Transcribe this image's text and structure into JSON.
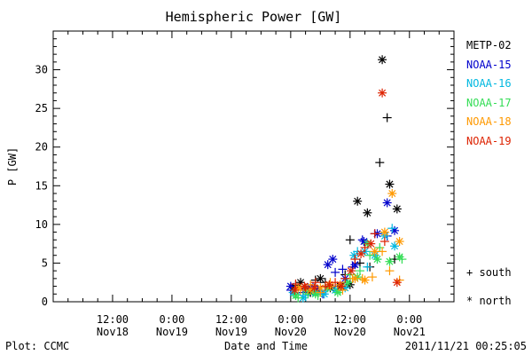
{
  "chart_data": {
    "type": "scatter",
    "title": "Hemispheric Power [GW]",
    "xlabel": "Date and Time",
    "ylabel": "P [GW]",
    "ylim": [
      0,
      35
    ],
    "xlim_hours": [
      -24,
      57
    ],
    "x_reference": "Nov20 00:00",
    "yticks": [
      0,
      5,
      10,
      15,
      20,
      25,
      30
    ],
    "xticks": [
      {
        "hours": -12,
        "time": "12:00",
        "date": "Nov18"
      },
      {
        "hours": 0,
        "time": "0:00",
        "date": "Nov19"
      },
      {
        "hours": 12,
        "time": "12:00",
        "date": "Nov19"
      },
      {
        "hours": 24,
        "time": "0:00",
        "date": "Nov20"
      },
      {
        "hours": 36,
        "time": "12:00",
        "date": "Nov20"
      },
      {
        "hours": 48,
        "time": "0:00",
        "date": "Nov21"
      }
    ],
    "series": [
      {
        "name": "METP-02",
        "color": "#000000",
        "south": [
          [
            25,
            2.1
          ],
          [
            27,
            1.5
          ],
          [
            29,
            2.8
          ],
          [
            31,
            2.5
          ],
          [
            33.5,
            2.0
          ],
          [
            35,
            3.5
          ],
          [
            36,
            8.0
          ],
          [
            38,
            5.0
          ],
          [
            40,
            4.5
          ],
          [
            42,
            18.0
          ],
          [
            43.5,
            23.8
          ],
          [
            45,
            5.5
          ]
        ],
        "north": [
          [
            24.5,
            1.8
          ],
          [
            26,
            2.5
          ],
          [
            28,
            1.2
          ],
          [
            30,
            3.0
          ],
          [
            32,
            1.8
          ],
          [
            34,
            2.0
          ],
          [
            36,
            2.2
          ],
          [
            37.5,
            13.0
          ],
          [
            39.5,
            11.5
          ],
          [
            42.5,
            31.3
          ],
          [
            44,
            15.2
          ],
          [
            45.5,
            12.0
          ]
        ]
      },
      {
        "name": "NOAA-15",
        "color": "#0000cc",
        "south": [
          [
            24,
            1.5
          ],
          [
            26.5,
            1.2
          ],
          [
            28.5,
            2.0
          ],
          [
            30.5,
            1.0
          ],
          [
            33,
            3.8
          ],
          [
            34.5,
            4.2
          ],
          [
            36.5,
            4.5
          ],
          [
            38.5,
            8.0
          ],
          [
            41,
            8.8
          ],
          [
            43.5,
            8.5
          ]
        ],
        "north": [
          [
            24,
            2.0
          ],
          [
            27.5,
            1.8
          ],
          [
            29.5,
            1.5
          ],
          [
            31.5,
            4.8
          ],
          [
            32.5,
            5.5
          ],
          [
            35,
            3.0
          ],
          [
            37,
            4.8
          ],
          [
            38.8,
            7.8
          ],
          [
            41.5,
            8.8
          ],
          [
            43.5,
            12.8
          ],
          [
            45,
            9.2
          ]
        ]
      },
      {
        "name": "NOAA-16",
        "color": "#00b8e0",
        "south": [
          [
            25,
            1.0
          ],
          [
            27,
            0.8
          ],
          [
            29,
            1.8
          ],
          [
            31,
            1.5
          ],
          [
            33,
            2.0
          ],
          [
            35.5,
            2.5
          ],
          [
            37.5,
            6.5
          ],
          [
            39.5,
            4.5
          ],
          [
            41.5,
            5.5
          ],
          [
            44.5,
            9.5
          ]
        ],
        "north": [
          [
            24.5,
            1.2
          ],
          [
            26.5,
            0.5
          ],
          [
            29,
            1.2
          ],
          [
            30.8,
            1.0
          ],
          [
            33,
            1.5
          ],
          [
            35,
            1.8
          ],
          [
            36.8,
            6.0
          ],
          [
            39,
            6.5
          ],
          [
            41,
            6.0
          ],
          [
            43,
            8.5
          ],
          [
            45,
            7.2
          ]
        ]
      },
      {
        "name": "NOAA-17",
        "color": "#33dd55",
        "south": [
          [
            25.5,
            0.5
          ],
          [
            27.5,
            1.0
          ],
          [
            29.5,
            0.8
          ],
          [
            31.5,
            2.0
          ],
          [
            34,
            1.5
          ],
          [
            36,
            3.5
          ],
          [
            38,
            4.0
          ],
          [
            40,
            6.0
          ],
          [
            42,
            7.0
          ],
          [
            46.5,
            5.5
          ]
        ],
        "north": [
          [
            25,
            0.8
          ],
          [
            27,
            1.5
          ],
          [
            29,
            1.0
          ],
          [
            31.5,
            1.8
          ],
          [
            33.5,
            1.2
          ],
          [
            35.5,
            2.5
          ],
          [
            37.5,
            3.2
          ],
          [
            39.5,
            7.5
          ],
          [
            41.5,
            5.5
          ],
          [
            44,
            5.2
          ],
          [
            46,
            5.8
          ]
        ]
      },
      {
        "name": "NOAA-18",
        "color": "#ff9900",
        "south": [
          [
            26,
            1.5
          ],
          [
            28,
            2.2
          ],
          [
            30,
            1.2
          ],
          [
            32,
            2.5
          ],
          [
            34.5,
            1.5
          ],
          [
            36.5,
            3.0
          ],
          [
            38.5,
            3.0
          ],
          [
            40.5,
            3.2
          ],
          [
            42.5,
            6.5
          ],
          [
            44,
            4.0
          ],
          [
            46,
            2.8
          ]
        ],
        "north": [
          [
            25.5,
            1.8
          ],
          [
            28,
            1.5
          ],
          [
            30,
            1.8
          ],
          [
            32,
            2.0
          ],
          [
            34,
            2.2
          ],
          [
            37,
            3.0
          ],
          [
            39,
            2.8
          ],
          [
            41,
            6.5
          ],
          [
            43,
            9.0
          ],
          [
            44.5,
            14.0
          ],
          [
            46,
            7.8
          ]
        ]
      },
      {
        "name": "NOAA-19",
        "color": "#dd2200",
        "south": [
          [
            25,
            2.3
          ],
          [
            27,
            1.8
          ],
          [
            29,
            2.5
          ],
          [
            31,
            2.0
          ],
          [
            33,
            2.5
          ],
          [
            35,
            3.0
          ],
          [
            37,
            5.5
          ],
          [
            39,
            7.0
          ],
          [
            41,
            8.8
          ],
          [
            43,
            7.8
          ]
        ],
        "north": [
          [
            24.8,
            1.5
          ],
          [
            26.8,
            2.0
          ],
          [
            28.8,
            1.8
          ],
          [
            31.8,
            2.2
          ],
          [
            34.2,
            2.0
          ],
          [
            36.2,
            4.0
          ],
          [
            38.2,
            6.2
          ],
          [
            40.2,
            7.5
          ],
          [
            42.5,
            27.0
          ],
          [
            45.5,
            2.5
          ]
        ]
      }
    ]
  },
  "marker_key": {
    "south_label": "south",
    "north_label": "north",
    "south_symbol": "+",
    "north_symbol": "*"
  },
  "footer": {
    "left": "Plot: CCMC",
    "center": "Date and Time",
    "right": "2011/11/21 00:25:05"
  }
}
